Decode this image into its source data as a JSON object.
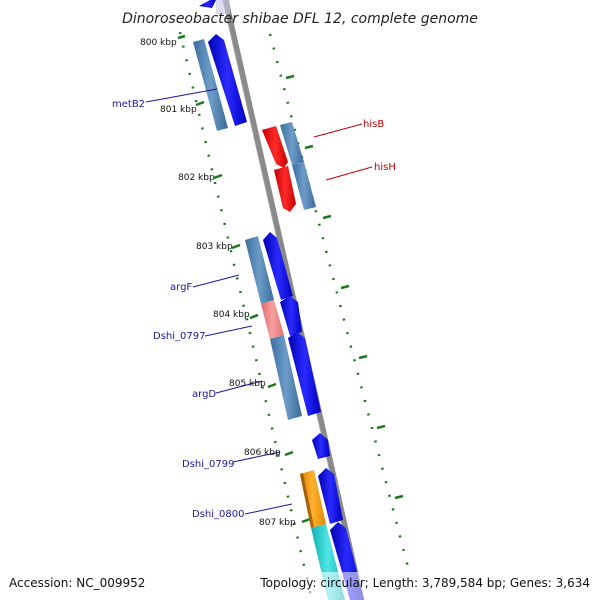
{
  "title": "Dinoroseobacter shibae DFL 12, complete genome",
  "footer": {
    "accession": "Accession: NC_009952",
    "summary": "Topology: circular; Length: 3,789,584 bp; Genes: 3,634"
  },
  "scale_labels": [
    "800 kbp",
    "801 kbp",
    "802 kbp",
    "803 kbp",
    "804 kbp",
    "805 kbp",
    "806 kbp",
    "807 kbp"
  ],
  "genes": {
    "metB2": "metB2",
    "hisB": "hisB",
    "hisH": "hisH",
    "argF": "argF",
    "dshi_0797": "Dshi_0797",
    "argD": "argD",
    "dshi_0799": "Dshi_0799",
    "dshi_0800": "Dshi_0800"
  },
  "colors": {
    "backbone": "#808080",
    "forward_cds": "#0000e0",
    "reverse_cds": "#e00000",
    "gene_feature": "#4a7fb5",
    "highlight_pink": "#f08080",
    "orange_feature": "#ff9900",
    "cyan_feature": "#22c8c8",
    "tick_green": "#1a7a1a"
  }
}
